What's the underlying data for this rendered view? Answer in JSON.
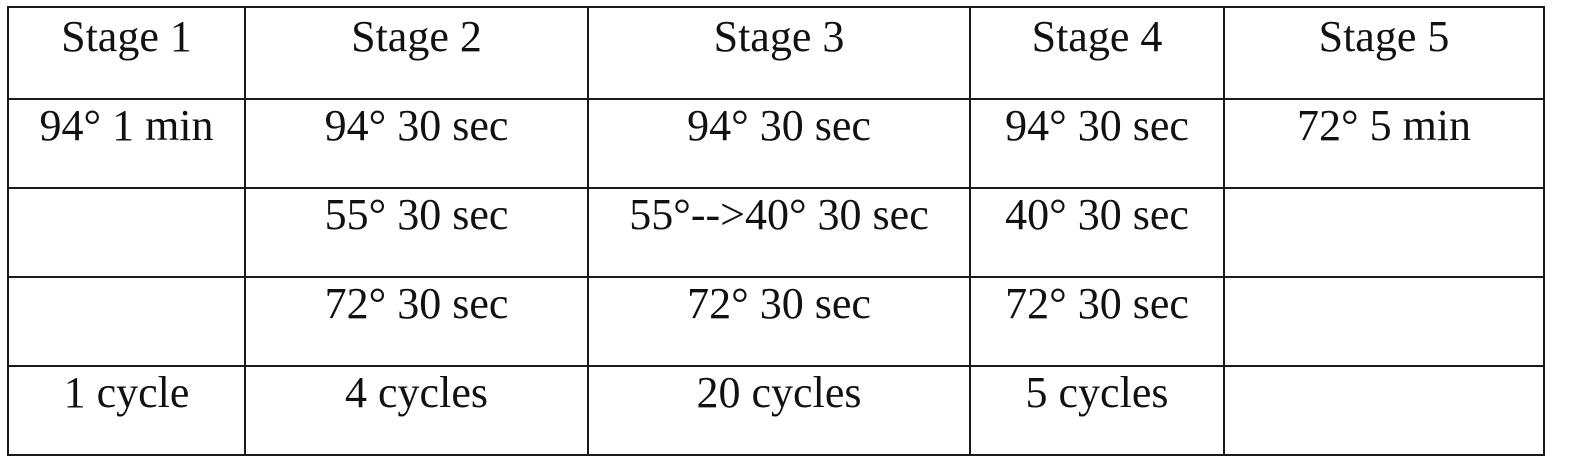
{
  "table": {
    "header": [
      "Stage 1",
      "Stage 2",
      "Stage 3",
      "Stage 4",
      "Stage 5"
    ],
    "rows": [
      [
        "94° 1 min",
        "94° 30 sec",
        "94° 30 sec",
        "94° 30 sec",
        "72° 5 min"
      ],
      [
        "",
        "55° 30 sec",
        "55°-->40° 30 sec",
        "40° 30 sec",
        ""
      ],
      [
        "",
        "72° 30 sec",
        "72° 30 sec",
        "72° 30 sec",
        ""
      ],
      [
        "1 cycle",
        "4 cycles",
        "20 cycles",
        "5 cycles",
        ""
      ]
    ]
  }
}
